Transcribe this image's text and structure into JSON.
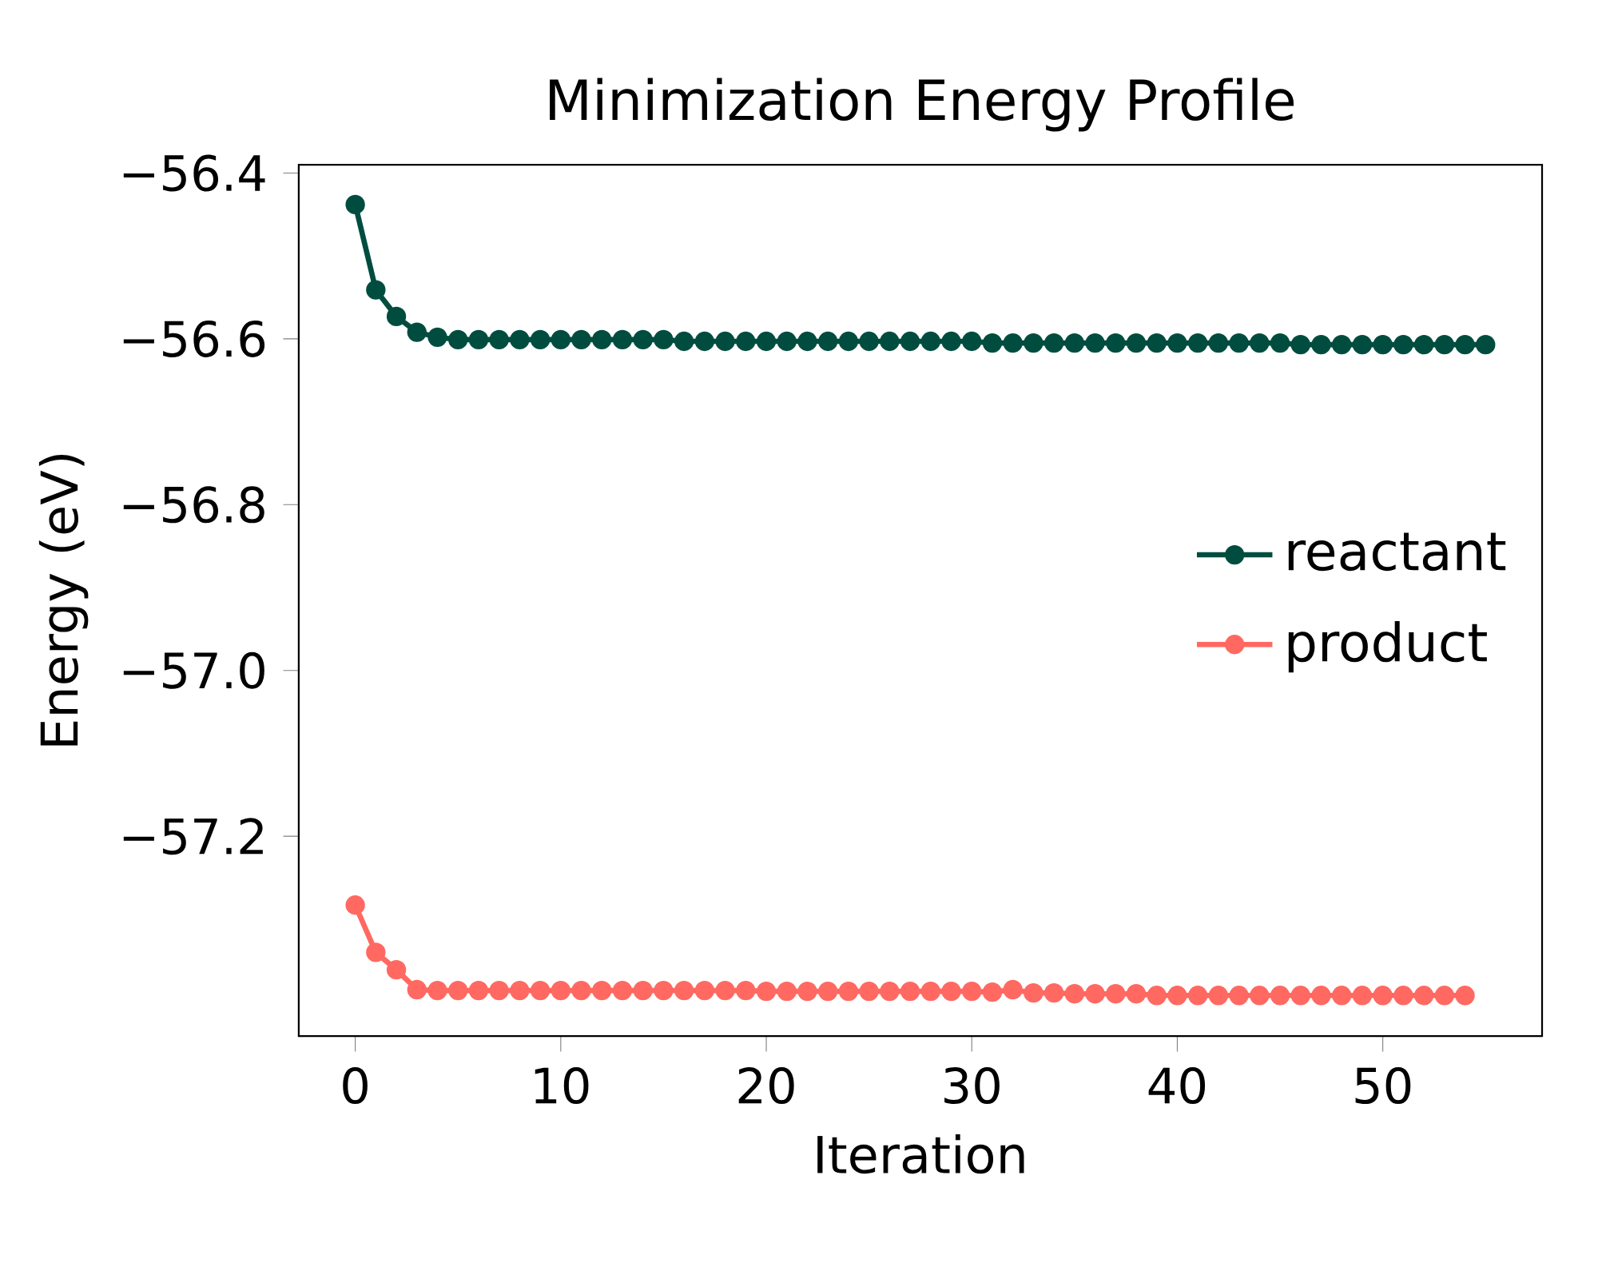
{
  "chart_data": {
    "type": "line",
    "title": "Minimization Energy Profile",
    "xlabel": "Iteration",
    "ylabel": "Energy (eV)",
    "xlim": [
      -2.75,
      57.75
    ],
    "ylim": [
      -57.441,
      -56.39
    ],
    "xticks": [
      0,
      10,
      20,
      30,
      40,
      50
    ],
    "yticks": [
      {
        "value": -56.4,
        "label": "−56.4"
      },
      {
        "value": -56.6,
        "label": "−56.6"
      },
      {
        "value": -56.8,
        "label": "−56.8"
      },
      {
        "value": -57.0,
        "label": "−57.0"
      },
      {
        "value": -57.2,
        "label": "−57.2"
      }
    ],
    "x": [
      0,
      1,
      2,
      3,
      4,
      5,
      6,
      7,
      8,
      9,
      10,
      11,
      12,
      13,
      14,
      15,
      16,
      17,
      18,
      19,
      20,
      21,
      22,
      23,
      24,
      25,
      26,
      27,
      28,
      29,
      30,
      31,
      32,
      33,
      34,
      35,
      36,
      37,
      38,
      39,
      40,
      41,
      42,
      43,
      44,
      45,
      46,
      47,
      48,
      49,
      50,
      51,
      52,
      53,
      54,
      55
    ],
    "marker": "circle",
    "line_style": "solid",
    "legend": "right",
    "grid": false,
    "series": [
      {
        "name": "reactant",
        "color": "#004d40",
        "values": [
          -56.438,
          -56.541,
          -56.573,
          -56.592,
          -56.598,
          -56.601,
          -56.601,
          -56.601,
          -56.601,
          -56.601,
          -56.601,
          -56.601,
          -56.601,
          -56.601,
          -56.601,
          -56.601,
          -56.603,
          -56.603,
          -56.603,
          -56.603,
          -56.603,
          -56.603,
          -56.603,
          -56.603,
          -56.603,
          -56.603,
          -56.603,
          -56.603,
          -56.603,
          -56.603,
          -56.603,
          -56.605,
          -56.605,
          -56.605,
          -56.605,
          -56.605,
          -56.605,
          -56.605,
          -56.605,
          -56.605,
          -56.605,
          -56.605,
          -56.605,
          -56.605,
          -56.605,
          -56.605,
          -56.607,
          -56.607,
          -56.607,
          -56.607,
          -56.607,
          -56.607,
          -56.607,
          -56.607,
          -56.607,
          -56.607
        ]
      },
      {
        "name": "product",
        "color": "#ff6961",
        "values": [
          -57.283,
          -57.34,
          -57.361,
          -57.385,
          -57.386,
          -57.386,
          -57.386,
          -57.386,
          -57.386,
          -57.386,
          -57.386,
          -57.386,
          -57.386,
          -57.386,
          -57.386,
          -57.386,
          -57.386,
          -57.386,
          -57.386,
          -57.386,
          -57.387,
          -57.387,
          -57.387,
          -57.387,
          -57.387,
          -57.387,
          -57.387,
          -57.387,
          -57.387,
          -57.387,
          -57.387,
          -57.388,
          -57.385,
          -57.389,
          -57.389,
          -57.39,
          -57.39,
          -57.39,
          -57.39,
          -57.392,
          -57.392,
          -57.392,
          -57.392,
          -57.392,
          -57.392,
          -57.392,
          -57.392,
          -57.392,
          -57.392,
          -57.392,
          -57.392,
          -57.392,
          -57.392,
          -57.392,
          -57.392,
          null
        ]
      }
    ]
  }
}
